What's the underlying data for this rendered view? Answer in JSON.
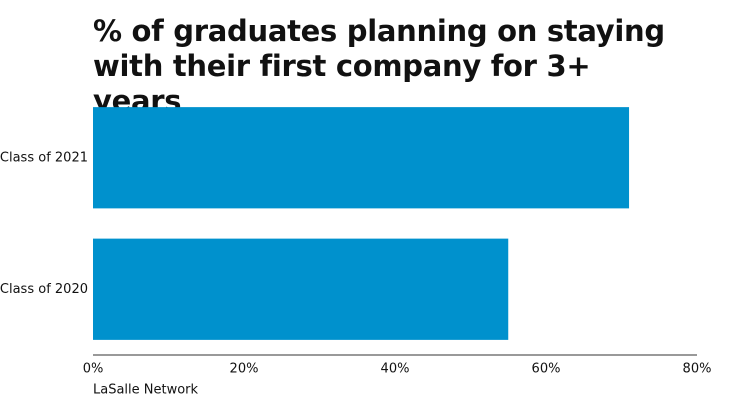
{
  "chart_data": {
    "type": "bar",
    "orientation": "horizontal",
    "title": "% of graduates planning on staying with their first company for 3+ years",
    "categories": [
      "Class of 2021",
      "Class of 2020"
    ],
    "values": [
      71,
      55
    ],
    "color": "#0091cd",
    "xlim": [
      0,
      80
    ],
    "xticks": [
      {
        "value": 0,
        "label": "0%"
      },
      {
        "value": 20,
        "label": "20%"
      },
      {
        "value": 40,
        "label": "40%"
      },
      {
        "value": 60,
        "label": "60%"
      },
      {
        "value": 80,
        "label": "80%"
      }
    ],
    "source": "LaSalle Network"
  }
}
